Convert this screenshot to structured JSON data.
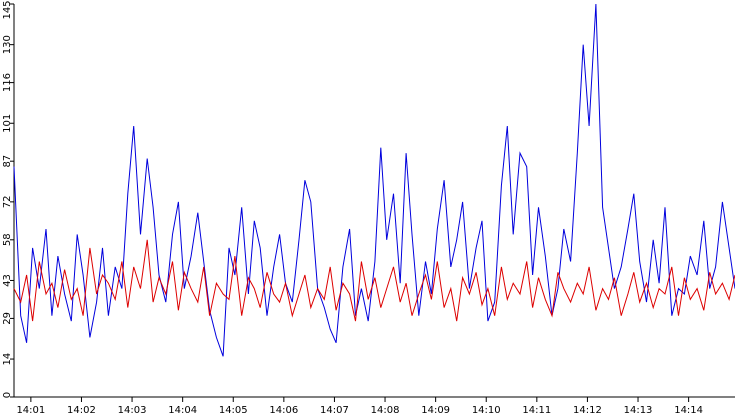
{
  "chart_data": {
    "type": "line",
    "title": "",
    "xlabel": "",
    "ylabel": "",
    "x_ticks": [
      "14:01",
      "14:02",
      "14:03",
      "14:04",
      "14:05",
      "14:06",
      "14:07",
      "14:08",
      "14:09",
      "14:10",
      "14:11",
      "14:12",
      "14:13",
      "14:14"
    ],
    "y_ticks": [
      0,
      14,
      29,
      43,
      58,
      72,
      87,
      101,
      116,
      130,
      145
    ],
    "ylim": [
      0,
      145
    ],
    "xlim": [
      "14:00:40",
      "14:14:55"
    ],
    "grid": false,
    "series": [
      {
        "color": "#0000dd",
        "x": [
          "14:00:40",
          "14:00:48",
          "14:00:55",
          "14:01:02",
          "14:01:10",
          "14:01:18",
          "14:01:25",
          "14:01:32",
          "14:01:40",
          "14:01:48",
          "14:01:55",
          "14:02:02",
          "14:02:10",
          "14:02:18",
          "14:02:25",
          "14:02:32",
          "14:02:40",
          "14:02:48",
          "14:02:55",
          "14:03:02",
          "14:03:10",
          "14:03:18",
          "14:03:25",
          "14:03:32",
          "14:03:40",
          "14:03:48",
          "14:03:55",
          "14:04:02",
          "14:04:10",
          "14:04:18",
          "14:04:25",
          "14:04:32",
          "14:04:40",
          "14:04:48",
          "14:04:55",
          "14:05:02",
          "14:05:10",
          "14:05:18",
          "14:05:25",
          "14:05:32",
          "14:05:40",
          "14:05:48",
          "14:05:55",
          "14:06:02",
          "14:06:10",
          "14:06:18",
          "14:06:25",
          "14:06:32",
          "14:06:40",
          "14:06:48",
          "14:06:55",
          "14:07:02",
          "14:07:10",
          "14:07:18",
          "14:07:25",
          "14:07:32",
          "14:07:40",
          "14:07:48",
          "14:07:55",
          "14:08:02",
          "14:08:10",
          "14:08:18",
          "14:08:25",
          "14:08:32",
          "14:08:40",
          "14:08:48",
          "14:08:55",
          "14:09:02",
          "14:09:10",
          "14:09:18",
          "14:09:25",
          "14:09:32",
          "14:09:40",
          "14:09:48",
          "14:09:55",
          "14:10:02",
          "14:10:10",
          "14:10:18",
          "14:10:25",
          "14:10:32",
          "14:10:40",
          "14:10:48",
          "14:10:55",
          "14:11:02",
          "14:11:10",
          "14:11:18",
          "14:11:25",
          "14:11:32",
          "14:11:40",
          "14:11:48",
          "14:11:55",
          "14:12:02",
          "14:12:10",
          "14:12:18",
          "14:12:25",
          "14:12:32",
          "14:12:40",
          "14:12:48",
          "14:12:55",
          "14:13:02",
          "14:13:10",
          "14:13:18",
          "14:13:25",
          "14:13:32",
          "14:13:40",
          "14:13:48",
          "14:13:55",
          "14:14:02",
          "14:14:10",
          "14:14:18",
          "14:14:25",
          "14:14:32",
          "14:14:40",
          "14:14:48",
          "14:14:55"
        ],
        "values": [
          85,
          30,
          20,
          55,
          40,
          62,
          30,
          52,
          38,
          28,
          60,
          45,
          22,
          35,
          55,
          30,
          48,
          40,
          75,
          100,
          60,
          88,
          70,
          45,
          35,
          60,
          72,
          40,
          52,
          68,
          50,
          32,
          22,
          15,
          55,
          45,
          70,
          38,
          65,
          55,
          30,
          48,
          60,
          42,
          35,
          58,
          80,
          72,
          40,
          33,
          25,
          20,
          48,
          62,
          30,
          40,
          28,
          50,
          92,
          58,
          75,
          42,
          90,
          60,
          30,
          50,
          38,
          62,
          80,
          48,
          58,
          72,
          40,
          55,
          65,
          28,
          35,
          78,
          100,
          60,
          90,
          85,
          45,
          70,
          52,
          30,
          40,
          62,
          50,
          90,
          130,
          100,
          145,
          70,
          55,
          40,
          48,
          62,
          75,
          50,
          35,
          58,
          42,
          70,
          30,
          40,
          38,
          52,
          45,
          65,
          40,
          48,
          72,
          55,
          40
        ]
      },
      {
        "color": "#dd0000",
        "x": [
          "14:00:40",
          "14:00:48",
          "14:00:55",
          "14:01:02",
          "14:01:10",
          "14:01:18",
          "14:01:25",
          "14:01:32",
          "14:01:40",
          "14:01:48",
          "14:01:55",
          "14:02:02",
          "14:02:10",
          "14:02:18",
          "14:02:25",
          "14:02:32",
          "14:02:40",
          "14:02:48",
          "14:02:55",
          "14:03:02",
          "14:03:10",
          "14:03:18",
          "14:03:25",
          "14:03:32",
          "14:03:40",
          "14:03:48",
          "14:03:55",
          "14:04:02",
          "14:04:10",
          "14:04:18",
          "14:04:25",
          "14:04:32",
          "14:04:40",
          "14:04:48",
          "14:04:55",
          "14:05:02",
          "14:05:10",
          "14:05:18",
          "14:05:25",
          "14:05:32",
          "14:05:40",
          "14:05:48",
          "14:05:55",
          "14:06:02",
          "14:06:10",
          "14:06:18",
          "14:06:25",
          "14:06:32",
          "14:06:40",
          "14:06:48",
          "14:06:55",
          "14:07:02",
          "14:07:10",
          "14:07:18",
          "14:07:25",
          "14:07:32",
          "14:07:40",
          "14:07:48",
          "14:07:55",
          "14:08:02",
          "14:08:10",
          "14:08:18",
          "14:08:25",
          "14:08:32",
          "14:08:40",
          "14:08:48",
          "14:08:55",
          "14:09:02",
          "14:09:10",
          "14:09:18",
          "14:09:25",
          "14:09:32",
          "14:09:40",
          "14:09:48",
          "14:09:55",
          "14:10:02",
          "14:10:10",
          "14:10:18",
          "14:10:25",
          "14:10:32",
          "14:10:40",
          "14:10:48",
          "14:10:55",
          "14:11:02",
          "14:11:10",
          "14:11:18",
          "14:11:25",
          "14:11:32",
          "14:11:40",
          "14:11:48",
          "14:11:55",
          "14:12:02",
          "14:12:10",
          "14:12:18",
          "14:12:25",
          "14:12:32",
          "14:12:40",
          "14:12:48",
          "14:12:55",
          "14:13:02",
          "14:13:10",
          "14:13:18",
          "14:13:25",
          "14:13:32",
          "14:13:40",
          "14:13:48",
          "14:13:55",
          "14:14:02",
          "14:14:10",
          "14:14:18",
          "14:14:25",
          "14:14:32",
          "14:14:40",
          "14:14:48",
          "14:14:55"
        ],
        "values": [
          40,
          35,
          45,
          28,
          50,
          38,
          42,
          33,
          47,
          36,
          40,
          30,
          55,
          38,
          45,
          42,
          36,
          50,
          33,
          48,
          40,
          58,
          35,
          44,
          38,
          50,
          32,
          46,
          40,
          35,
          48,
          30,
          42,
          38,
          36,
          52,
          30,
          44,
          40,
          33,
          46,
          38,
          35,
          42,
          30,
          38,
          45,
          33,
          40,
          36,
          48,
          32,
          42,
          38,
          28,
          50,
          36,
          44,
          33,
          40,
          48,
          35,
          42,
          30,
          38,
          45,
          36,
          50,
          33,
          40,
          28,
          44,
          38,
          46,
          34,
          40,
          30,
          48,
          36,
          42,
          38,
          50,
          33,
          44,
          36,
          30,
          46,
          40,
          35,
          42,
          38,
          48,
          32,
          40,
          36,
          44,
          30,
          38,
          46,
          35,
          42,
          33,
          40,
          38,
          48,
          30,
          44,
          36,
          40,
          32,
          46,
          38,
          42,
          36,
          45
        ]
      }
    ]
  }
}
